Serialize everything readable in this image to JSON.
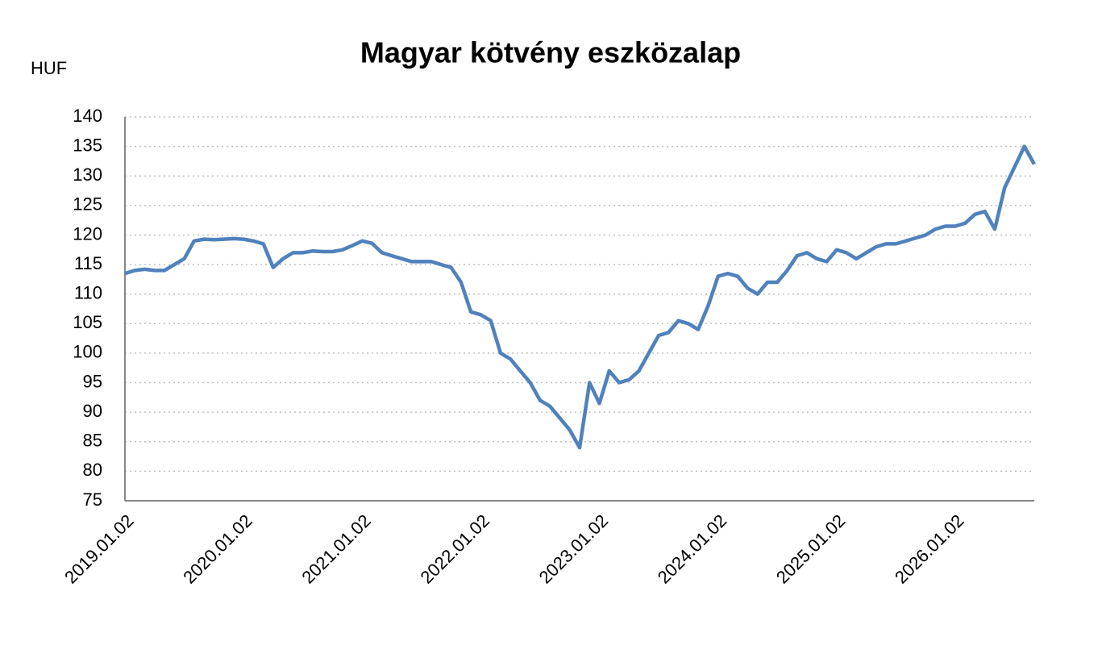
{
  "chart_data": {
    "type": "line",
    "title": "Magyar kötvény eszközalap",
    "y_label": "HUF",
    "categories": [
      "2019.01.02",
      null,
      null,
      null,
      null,
      null,
      null,
      null,
      null,
      null,
      null,
      null,
      "2020.01.02",
      null,
      null,
      null,
      null,
      null,
      null,
      null,
      null,
      null,
      null,
      null,
      "2021.01.02",
      null,
      null,
      null,
      null,
      null,
      null,
      null,
      null,
      null,
      null,
      null,
      "2022.01.02",
      null,
      null,
      null,
      null,
      null,
      null,
      null,
      null,
      null,
      null,
      null,
      "2023.01.02",
      null,
      null,
      null,
      null,
      null,
      null,
      null,
      null,
      null,
      null,
      null,
      "2024.01.02",
      null,
      null,
      null,
      null,
      null,
      null,
      null,
      null,
      null,
      null,
      null,
      "2025.01.02",
      null,
      null,
      null,
      null,
      null,
      null,
      null,
      null,
      null,
      null,
      null,
      "2026.01.02",
      null,
      null,
      null,
      null,
      null,
      null,
      null,
      null
    ],
    "series": [
      {
        "color": "#4f81bd",
        "values": [
          113.5,
          114,
          114.2,
          114,
          114,
          115,
          116,
          119,
          119.3,
          119.2,
          119.3,
          119.4,
          119.3,
          119,
          118.5,
          114.5,
          116,
          117,
          117,
          117.3,
          117.2,
          117.2,
          117.5,
          118.2,
          119,
          118.6,
          117,
          116.5,
          116,
          115.5,
          115.5,
          115.5,
          115,
          114.5,
          112,
          107,
          106.5,
          105.5,
          100,
          99,
          97,
          95,
          92,
          91,
          89,
          87,
          84,
          95,
          91.5,
          97,
          95,
          95.5,
          97,
          100,
          103,
          103.5,
          105.5,
          105,
          104,
          108,
          113,
          113.5,
          113,
          111,
          110,
          112,
          112,
          114,
          116.5,
          117,
          116,
          115.5,
          117.5,
          117,
          116,
          117,
          118,
          118.5,
          118.5,
          119,
          119.5,
          120,
          121,
          121.5,
          121.5,
          122,
          123.5,
          124,
          121,
          128,
          131.5,
          135,
          132
        ]
      }
    ],
    "ylim": [
      75,
      140
    ],
    "yticks": [
      75,
      80,
      85,
      90,
      95,
      100,
      105,
      110,
      115,
      120,
      125,
      130,
      135,
      140
    ],
    "grid": true
  }
}
